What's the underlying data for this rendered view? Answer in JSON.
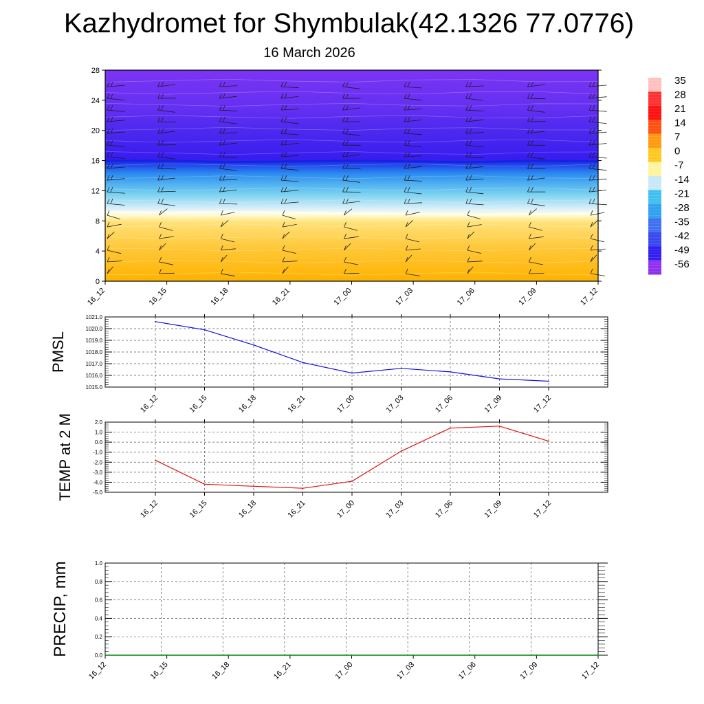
{
  "header": {
    "title": "Kazhydromet for Shymbulak(42.1326 77.0776)",
    "date": "16 March 2026"
  },
  "colorbar": {
    "labels": [
      "35",
      "28",
      "21",
      "14",
      "7",
      "0",
      "-7",
      "-14",
      "-21",
      "-28",
      "-35",
      "-42",
      "-49",
      "-56"
    ],
    "colors": [
      "#ffc0c0",
      "#ff3030",
      "#ff1010",
      "#ff5010",
      "#ff9a10",
      "#ffc820",
      "#fff4a0",
      "#c8e8f8",
      "#40c0f0",
      "#30a0f0",
      "#4070f0",
      "#3848f0",
      "#3020f0",
      "#9030f0"
    ]
  },
  "chart_data": [
    {
      "type": "heatmap",
      "name": "vertical-temperature-wind-profile",
      "title": "Kazhydromet for Shymbulak(42.1326 77.0776)",
      "subtitle": "16 March 2026",
      "x": [
        "16_12",
        "16_15",
        "16_18",
        "16_21",
        "17_00",
        "17_03",
        "17_06",
        "17_09",
        "17_12"
      ],
      "yticks": [
        "0",
        "4",
        "8",
        "12",
        "16",
        "20",
        "24",
        "28"
      ],
      "ylim": [
        0,
        28
      ],
      "value_range": [
        -56,
        35
      ],
      "freezing_level": [
        9.2,
        9.1,
        9.2,
        9.1,
        9.0,
        8.9,
        8.8,
        8.9,
        9.0
      ],
      "tropopause_level": [
        16.0,
        16.0,
        15.8,
        15.9,
        16.0,
        15.9,
        15.8,
        16.0,
        15.9
      ],
      "wind_barbs": true
    },
    {
      "type": "line",
      "name": "pmsl",
      "ylabel": "PMSL",
      "x": [
        "16_12",
        "16_15",
        "16_18",
        "16_21",
        "17_00",
        "17_03",
        "17_06",
        "17_09",
        "17_12"
      ],
      "values": [
        1020.6,
        1019.9,
        1018.6,
        1017.1,
        1016.2,
        1016.6,
        1016.3,
        1015.7,
        1015.5
      ],
      "yticks": [
        "1021.0",
        "1020.0",
        "1019.0",
        "1018.0",
        "1017.0",
        "1016.0",
        "1015.0"
      ],
      "ylim": [
        1015.0,
        1021.0
      ],
      "color": "#1010e0"
    },
    {
      "type": "line",
      "name": "temp-2m",
      "ylabel": "TEMP at 2 M",
      "x": [
        "16_12",
        "16_15",
        "16_18",
        "16_21",
        "17_00",
        "17_03",
        "17_06",
        "17_09",
        "17_12"
      ],
      "values": [
        -1.8,
        -4.2,
        -4.4,
        -4.6,
        -3.9,
        -0.9,
        1.4,
        1.6,
        0.1
      ],
      "yticks": [
        "2.0",
        "1.0",
        "0.0",
        "-1.0",
        "-2.0",
        "-3.0",
        "-4.0",
        "-5.0"
      ],
      "ylim": [
        -5.0,
        2.0
      ],
      "color": "#e01010"
    },
    {
      "type": "line",
      "name": "precip",
      "ylabel": "PRECIP, mm",
      "x": [
        "16_12",
        "16_15",
        "16_18",
        "16_21",
        "17_00",
        "17_03",
        "17_06",
        "17_09",
        "17_12"
      ],
      "values": [
        0,
        0,
        0,
        0,
        0,
        0,
        0,
        0,
        0
      ],
      "yticks": [
        "1.0",
        "0.8",
        "0.6",
        "0.4",
        "0.2",
        "0.0"
      ],
      "ylim": [
        0.0,
        1.0
      ],
      "color": "#008000"
    }
  ]
}
